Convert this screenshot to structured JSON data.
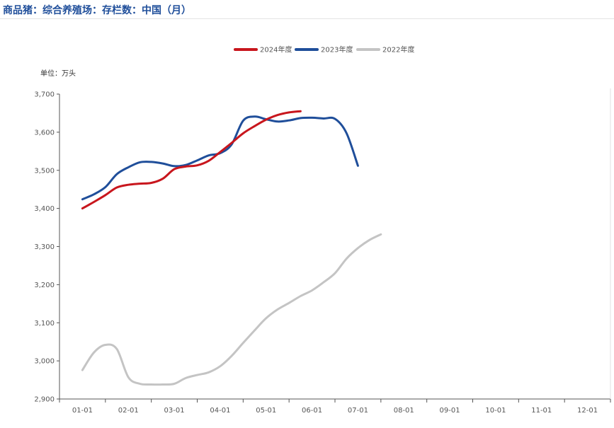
{
  "header": {
    "title": "商品猪：综合养殖场：存栏数：中国（月）"
  },
  "chart_data": {
    "type": "line",
    "title": "商品猪：综合养殖场：存栏数：中国（月）",
    "unit_label": "单位：万头",
    "xlabel": "",
    "ylabel": "万头",
    "categories": [
      "01-01",
      "02-01",
      "03-01",
      "04-01",
      "05-01",
      "06-01",
      "07-01",
      "08-01",
      "09-01",
      "10-01",
      "11-01",
      "12-01"
    ],
    "y_ticks": [
      "2,900",
      "3,000",
      "3,100",
      "3,200",
      "3,300",
      "3,400",
      "3,500",
      "3,600",
      "3,700"
    ],
    "ylim": [
      2900,
      3700
    ],
    "legend_position": "top-center",
    "series": [
      {
        "name": "2024年度",
        "color": "#c8161d",
        "points": [
          [
            0,
            3400
          ],
          [
            0.5,
            3417
          ],
          [
            1,
            3435
          ],
          [
            1.5,
            3455
          ],
          [
            2,
            3462
          ],
          [
            2.5,
            3465
          ],
          [
            3,
            3467
          ],
          [
            3.5,
            3478
          ],
          [
            4,
            3503
          ],
          [
            4.5,
            3510
          ],
          [
            5,
            3513
          ],
          [
            5.5,
            3525
          ],
          [
            6,
            3548
          ],
          [
            6.5,
            3572
          ],
          [
            7,
            3597
          ],
          [
            7.5,
            3616
          ],
          [
            8,
            3633
          ],
          [
            8.5,
            3645
          ],
          [
            9,
            3652
          ],
          [
            9.5,
            3655
          ]
        ]
      },
      {
        "name": "2023年度",
        "color": "#1f4e9a",
        "points": [
          [
            0,
            3424
          ],
          [
            0.5,
            3437
          ],
          [
            1,
            3456
          ],
          [
            1.5,
            3490
          ],
          [
            2,
            3508
          ],
          [
            2.5,
            3521
          ],
          [
            3,
            3522
          ],
          [
            3.5,
            3518
          ],
          [
            4,
            3511
          ],
          [
            4.5,
            3514
          ],
          [
            5,
            3526
          ],
          [
            5.5,
            3539
          ],
          [
            6,
            3545
          ],
          [
            6.5,
            3568
          ],
          [
            7,
            3630
          ],
          [
            7.5,
            3641
          ],
          [
            8,
            3634
          ],
          [
            8.5,
            3628
          ],
          [
            9,
            3631
          ],
          [
            9.5,
            3637
          ],
          [
            10,
            3638
          ],
          [
            10.5,
            3636
          ],
          [
            11,
            3635
          ],
          [
            11.5,
            3598
          ],
          [
            12,
            3512
          ]
        ]
      },
      {
        "name": "2022年度",
        "color": "#c4c4c4",
        "points": [
          [
            0,
            2976
          ],
          [
            0.5,
            3022
          ],
          [
            1,
            3042
          ],
          [
            1.5,
            3031
          ],
          [
            2,
            2957
          ],
          [
            2.5,
            2940
          ],
          [
            3,
            2938
          ],
          [
            3.5,
            2938
          ],
          [
            4,
            2940
          ],
          [
            4.5,
            2955
          ],
          [
            5,
            2963
          ],
          [
            5.5,
            2970
          ],
          [
            6,
            2986
          ],
          [
            6.5,
            3013
          ],
          [
            7,
            3047
          ],
          [
            7.5,
            3080
          ],
          [
            8,
            3112
          ],
          [
            8.5,
            3135
          ],
          [
            9,
            3152
          ],
          [
            9.5,
            3170
          ],
          [
            10,
            3185
          ],
          [
            10.5,
            3206
          ],
          [
            11,
            3230
          ],
          [
            11.5,
            3268
          ],
          [
            12,
            3296
          ],
          [
            12.5,
            3317
          ],
          [
            13,
            3332
          ]
        ]
      }
    ]
  }
}
